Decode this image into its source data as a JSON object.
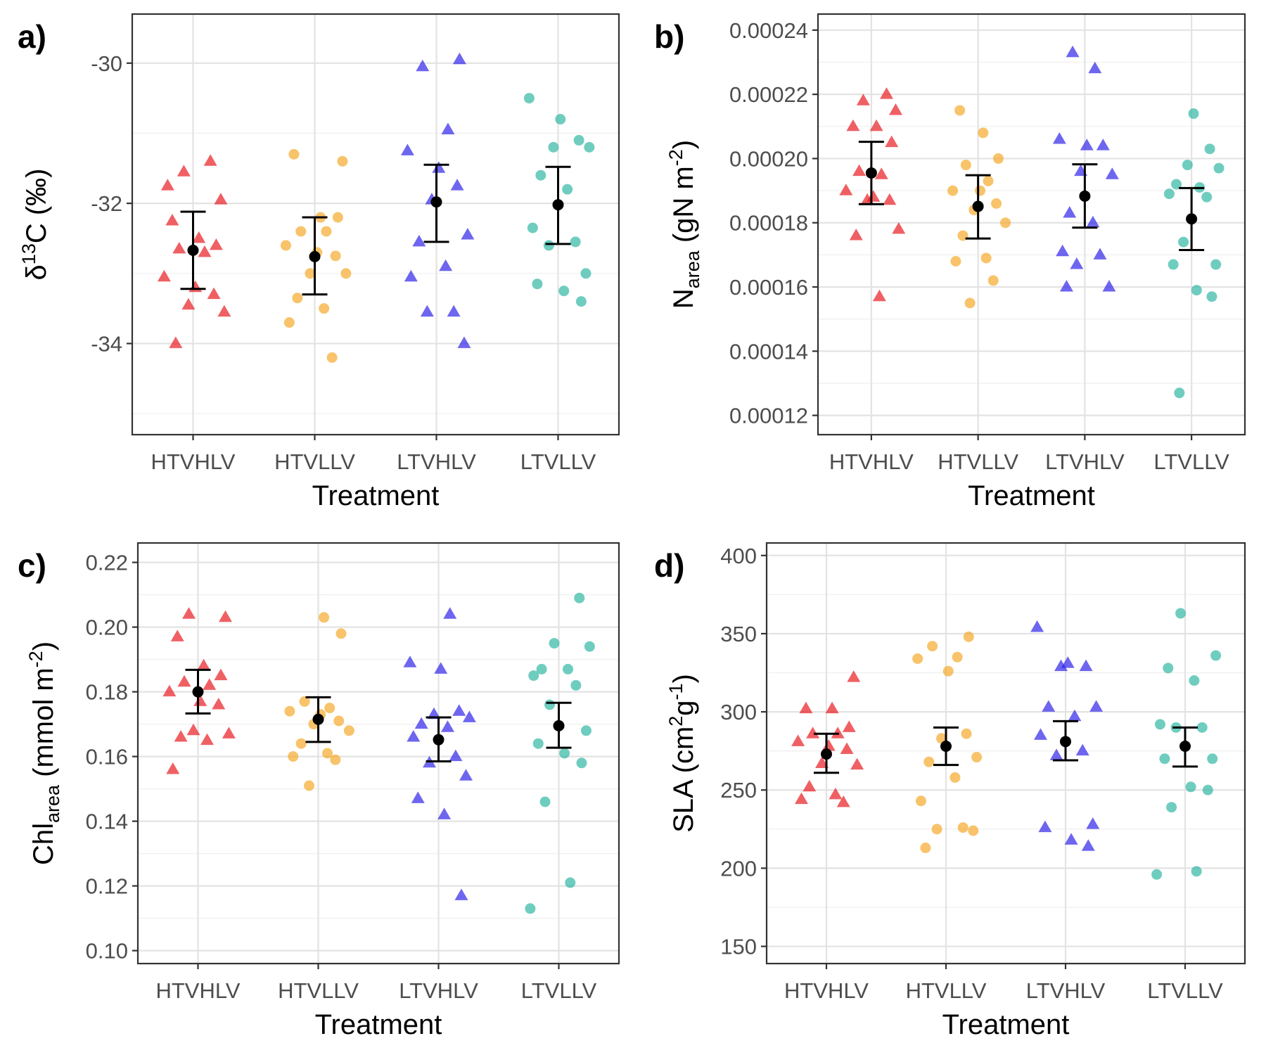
{
  "figure": {
    "x_title": "Treatment",
    "categories": [
      "HTVHLV",
      "HTVLLV",
      "LTVHLV",
      "LTVLLV"
    ],
    "colors": {
      "HTVHLV": "#e8141b",
      "HTVLLV": "#f5a623",
      "LTVHLV": "#2a1ee8",
      "LTVLLV": "#2bb5a0"
    },
    "shapes": {
      "HTVHLV": "triangle",
      "HTVLLV": "circle",
      "LTVHLV": "triangle",
      "LTVLLV": "circle"
    },
    "mean_color": "#000000"
  },
  "panels": {
    "a": {
      "label": "a)",
      "y_title": {
        "prefix": "δ",
        "sup": "13",
        "rest": "C (‰)"
      }
    },
    "b": {
      "label": "b)",
      "y_title": {
        "base": "N",
        "sub": "area",
        "mid": " (gN m",
        "sup": "-2",
        "end": ")"
      }
    },
    "c": {
      "label": "c)",
      "y_title": {
        "base": "Chl",
        "sub": "area",
        "mid": " (mmol m",
        "sup": "-2",
        "end": ")"
      }
    },
    "d": {
      "label": "d)",
      "y_title": {
        "base": "SLA (cm",
        "sup": "2",
        "mid": "g",
        "sup2": "-1",
        "end": ")"
      }
    }
  },
  "chart_data": [
    {
      "panel": "a",
      "type": "scatter",
      "xlabel": "Treatment",
      "ylabel": "δ13C (‰)",
      "categories": [
        "HTVHLV",
        "HTVLLV",
        "LTVHLV",
        "LTVLLV"
      ],
      "ylim": [
        -35.3,
        -29.3
      ],
      "yticks": [
        -34,
        -32,
        -30
      ],
      "ytick_labels": [
        "-34",
        "-32",
        "-30"
      ],
      "grid": true,
      "series": [
        {
          "category": "HTVHLV",
          "values": [
            -31.75,
            -31.4,
            -31.55,
            -31.95,
            -32.25,
            -32.5,
            -32.6,
            -32.65,
            -32.7,
            -33.05,
            -33.2,
            -33.3,
            -33.45,
            -33.55,
            -34.0
          ],
          "mean": -32.67,
          "lower": -33.22,
          "upper": -32.12
        },
        {
          "category": "HTVLLV",
          "values": [
            -31.4,
            -31.3,
            -32.2,
            -32.2,
            -32.4,
            -32.4,
            -32.6,
            -32.7,
            -32.75,
            -33.0,
            -33.0,
            -33.35,
            -33.5,
            -33.7,
            -34.2
          ],
          "mean": -32.76,
          "lower": -33.3,
          "upper": -32.2
        },
        {
          "category": "LTVHLV",
          "values": [
            -29.95,
            -30.05,
            -30.95,
            -31.25,
            -31.5,
            -31.75,
            -31.95,
            -32.45,
            -32.55,
            -32.9,
            -33.05,
            -33.55,
            -33.55,
            -34.0
          ],
          "mean": -31.98,
          "lower": -32.55,
          "upper": -31.45
        },
        {
          "category": "LTVLLV",
          "values": [
            -30.5,
            -30.8,
            -31.1,
            -31.2,
            -31.2,
            -31.6,
            -31.8,
            -32.35,
            -32.55,
            -32.6,
            -33.0,
            -33.15,
            -33.25,
            -33.4
          ],
          "mean": -32.02,
          "lower": -32.58,
          "upper": -31.48
        }
      ]
    },
    {
      "panel": "b",
      "type": "scatter",
      "xlabel": "Treatment",
      "ylabel": "Narea (gN m-2)",
      "categories": [
        "HTVHLV",
        "HTVLLV",
        "LTVHLV",
        "LTVLLV"
      ],
      "ylim": [
        0.000114,
        0.000245
      ],
      "yticks": [
        0.00012,
        0.00014,
        0.00016,
        0.00018,
        0.0002,
        0.00022,
        0.00024
      ],
      "ytick_labels": [
        "0.00012",
        "0.00014",
        "0.00016",
        "0.00018",
        "0.00020",
        "0.00022",
        "0.00024"
      ],
      "grid": true,
      "series": [
        {
          "category": "HTVHLV",
          "values": [
            0.00022,
            0.000218,
            0.000215,
            0.00021,
            0.00021,
            0.000205,
            0.000196,
            0.000195,
            0.00019,
            0.000188,
            0.000187,
            0.000187,
            0.000178,
            0.000176,
            0.000157
          ],
          "mean": 0.0001955,
          "lower": 0.0001858,
          "upper": 0.0002052
        },
        {
          "category": "HTVLLV",
          "values": [
            0.000215,
            0.000208,
            0.0002,
            0.000198,
            0.000193,
            0.00019,
            0.00019,
            0.000186,
            0.000184,
            0.00018,
            0.000176,
            0.000169,
            0.000168,
            0.000162,
            0.000155
          ],
          "mean": 0.0001851,
          "lower": 0.0001751,
          "upper": 0.0001948
        },
        {
          "category": "LTVHLV",
          "values": [
            0.000233,
            0.000228,
            0.000206,
            0.000204,
            0.000204,
            0.000196,
            0.000195,
            0.000183,
            0.00018,
            0.000171,
            0.00017,
            0.000167,
            0.00016,
            0.00016
          ],
          "mean": 0.0001883,
          "lower": 0.0001785,
          "upper": 0.0001982
        },
        {
          "category": "LTVLLV",
          "values": [
            0.000214,
            0.000203,
            0.000198,
            0.000197,
            0.000192,
            0.000191,
            0.000189,
            0.000188,
            0.000174,
            0.000167,
            0.000167,
            0.000159,
            0.000157,
            0.000127
          ],
          "mean": 0.0001812,
          "lower": 0.0001715,
          "upper": 0.0001908
        }
      ]
    },
    {
      "panel": "c",
      "type": "scatter",
      "xlabel": "Treatment",
      "ylabel": "Chlarea (mmol m-2)",
      "categories": [
        "HTVHLV",
        "HTVLLV",
        "LTVHLV",
        "LTVLLV"
      ],
      "ylim": [
        0.096,
        0.226
      ],
      "yticks": [
        0.1,
        0.12,
        0.14,
        0.16,
        0.18,
        0.2,
        0.22
      ],
      "ytick_labels": [
        "0.10",
        "0.12",
        "0.14",
        "0.16",
        "0.18",
        "0.20",
        "0.22"
      ],
      "grid": true,
      "series": [
        {
          "category": "HTVHLV",
          "values": [
            0.204,
            0.203,
            0.197,
            0.188,
            0.185,
            0.183,
            0.182,
            0.18,
            0.177,
            0.176,
            0.168,
            0.167,
            0.166,
            0.165,
            0.156
          ],
          "mean": 0.18,
          "lower": 0.1733,
          "upper": 0.1868
        },
        {
          "category": "HTVLLV",
          "values": [
            0.203,
            0.198,
            0.177,
            0.175,
            0.174,
            0.173,
            0.171,
            0.17,
            0.168,
            0.164,
            0.161,
            0.16,
            0.159,
            0.151
          ],
          "mean": 0.1715,
          "lower": 0.1645,
          "upper": 0.1783
        },
        {
          "category": "LTVHLV",
          "values": [
            0.204,
            0.189,
            0.187,
            0.174,
            0.173,
            0.172,
            0.17,
            0.169,
            0.166,
            0.16,
            0.158,
            0.154,
            0.147,
            0.142,
            0.117
          ],
          "mean": 0.1652,
          "lower": 0.1585,
          "upper": 0.1721
        },
        {
          "category": "LTVLLV",
          "values": [
            0.209,
            0.195,
            0.194,
            0.187,
            0.187,
            0.185,
            0.182,
            0.176,
            0.168,
            0.164,
            0.161,
            0.158,
            0.146,
            0.121,
            0.113
          ],
          "mean": 0.1695,
          "lower": 0.1627,
          "upper": 0.1766
        }
      ]
    },
    {
      "panel": "d",
      "type": "scatter",
      "xlabel": "Treatment",
      "ylabel": "SLA (cm2g-1)",
      "categories": [
        "HTVHLV",
        "HTVLLV",
        "LTVHLV",
        "LTVLLV"
      ],
      "ylim": [
        139,
        408
      ],
      "yticks": [
        150,
        200,
        250,
        300,
        350,
        400
      ],
      "ytick_labels": [
        "150",
        "200",
        "250",
        "300",
        "350",
        "400"
      ],
      "grid": true,
      "series": [
        {
          "category": "HTVHLV",
          "values": [
            322,
            302,
            302,
            290,
            286,
            286,
            281,
            278,
            276,
            267,
            266,
            252,
            247,
            244,
            242
          ],
          "mean": 273,
          "lower": 261,
          "upper": 286
        },
        {
          "category": "HTVLLV",
          "values": [
            348,
            342,
            335,
            334,
            326,
            286,
            283,
            271,
            268,
            258,
            243,
            226,
            225,
            224,
            213
          ],
          "mean": 278,
          "lower": 266,
          "upper": 290
        },
        {
          "category": "LTVHLV",
          "values": [
            354,
            331,
            329,
            329,
            303,
            303,
            297,
            285,
            275,
            272,
            228,
            226,
            218,
            214
          ],
          "mean": 281,
          "lower": 269,
          "upper": 294
        },
        {
          "category": "LTVLLV",
          "values": [
            363,
            336,
            328,
            320,
            292,
            290,
            290,
            270,
            270,
            252,
            250,
            239,
            198,
            196
          ],
          "mean": 278,
          "lower": 265,
          "upper": 290
        }
      ]
    }
  ]
}
